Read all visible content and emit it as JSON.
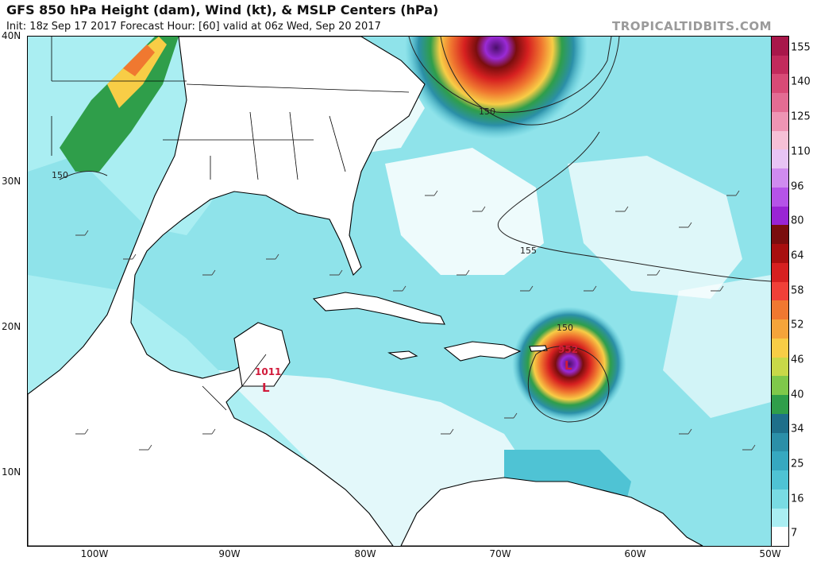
{
  "header": {
    "title": "GFS 850 hPa Height (dam), Wind (kt), & MSLP Centers (hPa)",
    "subtitle": "Init: 18z Sep 17 2017   Forecast Hour: [60]   valid at 06z Wed, Sep 20 2017",
    "watermark": "TROPICALTIDBITS.COM"
  },
  "axes": {
    "lat_labels": [
      "40N",
      "30N",
      "20N",
      "10N"
    ],
    "lon_labels": [
      "100W",
      "90W",
      "80W",
      "70W",
      "60W",
      "50W"
    ]
  },
  "map": {
    "lat_range": [
      5,
      40
    ],
    "lon_range": [
      -105,
      -50
    ],
    "height_contours": [
      {
        "label": "150"
      },
      {
        "label": "150"
      },
      {
        "label": "155"
      },
      {
        "label": "150"
      }
    ],
    "pressure_centers": [
      {
        "value": "1011",
        "symbol": "L",
        "lat": 16.4,
        "lon": -87.3,
        "color": "#d11a3a"
      },
      {
        "value": "952",
        "symbol": "L",
        "lat": 17.6,
        "lon": -65.3,
        "color": "#d11a3a"
      }
    ],
    "colors": {
      "ocean_light": "#aaeef2",
      "ocean_mid": "#63d3dc",
      "ocean_dark": "#2fa9b8",
      "strong_green": "#2aa44a",
      "yellow": "#f3d23a",
      "orange": "#f08c2a",
      "red": "#d42020",
      "purple": "#9a2ad6",
      "coast": "#000000"
    }
  },
  "colorbar": {
    "labels": [
      "155",
      "140",
      "125",
      "110",
      "96",
      "80",
      "64",
      "58",
      "52",
      "46",
      "40",
      "34",
      "25",
      "16",
      "7"
    ],
    "colors": [
      "#a8174a",
      "#c22a5c",
      "#d84a76",
      "#e36c93",
      "#ee95b4",
      "#f6c0d6",
      "#e7c4f4",
      "#cf8bef",
      "#b553e8",
      "#9924d4",
      "#7a0e0e",
      "#a80f0f",
      "#d62020",
      "#f04038",
      "#f07830",
      "#f5a43a",
      "#f8cd46",
      "#c8d848",
      "#7fc84a",
      "#2f9e4a",
      "#1e6f8a",
      "#2b8fa8",
      "#36a8c0",
      "#4fc3d4",
      "#79dbe3",
      "#aaeef2",
      "#ffffff"
    ]
  }
}
